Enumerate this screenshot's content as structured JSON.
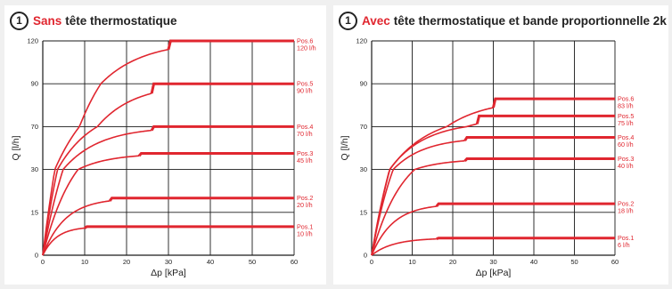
{
  "chart_data": [
    {
      "type": "line",
      "badge": "1",
      "title_emphasis": "Sans",
      "title_rest": "tête thermostatique",
      "xlabel": "Δp [kPa]",
      "ylabel": "Q [l/h]",
      "xlim": [
        0,
        60
      ],
      "ylim": [
        0,
        120
      ],
      "x_ticks": [
        0,
        10,
        20,
        30,
        40,
        50,
        60
      ],
      "y_ticks": [
        0,
        15,
        30,
        70,
        90,
        120
      ],
      "grid": true,
      "series": [
        {
          "name": "Pos.1",
          "flow_label": "10 l/h",
          "plateau": 10,
          "flat_from": 10
        },
        {
          "name": "Pos.2",
          "flow_label": "20 l/h",
          "plateau": 20,
          "flat_from": 16
        },
        {
          "name": "Pos.3",
          "flow_label": "45 l/h",
          "plateau": 45,
          "flat_from": 23
        },
        {
          "name": "Pos.4",
          "flow_label": "70 l/h",
          "plateau": 70,
          "flat_from": 26
        },
        {
          "name": "Pos.5",
          "flow_label": "90 l/h",
          "plateau": 90,
          "flat_from": 26
        },
        {
          "name": "Pos.6",
          "flow_label": "120 l/h",
          "plateau": 120,
          "flat_from": 30
        }
      ]
    },
    {
      "type": "line",
      "badge": "1",
      "title_emphasis": "Avec",
      "title_rest": "tête thermostatique et bande proportionnelle 2k",
      "xlabel": "Δp [kPa]",
      "ylabel": "Q [l/h]",
      "xlim": [
        0,
        60
      ],
      "ylim": [
        0,
        120
      ],
      "x_ticks": [
        0,
        10,
        20,
        30,
        40,
        50,
        60
      ],
      "y_ticks": [
        0,
        15,
        30,
        70,
        90,
        120
      ],
      "grid": true,
      "series": [
        {
          "name": "Pos.1",
          "flow_label": "6 l/h",
          "plateau": 6,
          "flat_from": 16
        },
        {
          "name": "Pos.2",
          "flow_label": "18 l/h",
          "plateau": 18,
          "flat_from": 16
        },
        {
          "name": "Pos.3",
          "flow_label": "40 l/h",
          "plateau": 40,
          "flat_from": 23
        },
        {
          "name": "Pos.4",
          "flow_label": "60 l/h",
          "plateau": 60,
          "flat_from": 23
        },
        {
          "name": "Pos.5",
          "flow_label": "75 l/h",
          "plateau": 75,
          "flat_from": 26
        },
        {
          "name": "Pos.6",
          "flow_label": "83 l/h",
          "plateau": 83,
          "flat_from": 30
        }
      ]
    }
  ]
}
